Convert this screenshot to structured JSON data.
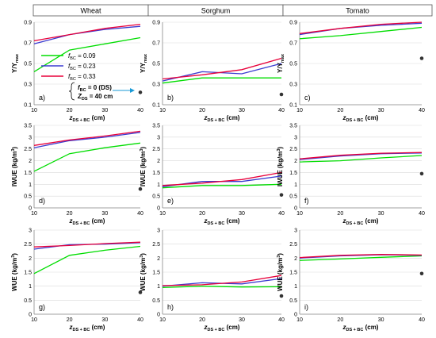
{
  "crop_titles": [
    "Wheat",
    "Sorghum",
    "Tomato"
  ],
  "legend": {
    "entries": [
      {
        "label": "f_BC = 0.09",
        "color": "#00dd00"
      },
      {
        "label": "f_BC = 0.23",
        "color": "#3a3ad0"
      },
      {
        "label": "f_BC = 0.33",
        "color": "#e8003a"
      }
    ],
    "annotation_line1": "f_BC = 0 (DS)",
    "annotation_line2": "Z_DS = 40 cm"
  },
  "x_axis_label": "z_DS + BC (cm)",
  "chart_data": [
    {
      "type": "line",
      "panel_label": "a)",
      "crop": "Wheat",
      "ylabel": "Y/Ymax",
      "x": [
        10,
        20,
        30,
        40
      ],
      "xlim": [
        10,
        40
      ],
      "xticks": [
        10,
        20,
        30,
        40
      ],
      "ylim": [
        0.1,
        0.9
      ],
      "yticks": [
        0.1,
        0.3,
        0.5,
        0.7,
        0.9
      ],
      "series": [
        {
          "color": "#00dd00",
          "values": [
            0.42,
            0.63,
            0.69,
            0.75
          ]
        },
        {
          "color": "#3a3ad0",
          "values": [
            0.69,
            0.78,
            0.83,
            0.86
          ]
        },
        {
          "color": "#e8003a",
          "values": [
            0.72,
            0.78,
            0.84,
            0.88
          ]
        }
      ],
      "ds_point": {
        "x": 40,
        "y": 0.22
      }
    },
    {
      "type": "line",
      "panel_label": "b)",
      "crop": "Sorghum",
      "ylabel": "Y/Ymax",
      "x": [
        10,
        20,
        30,
        40
      ],
      "xlim": [
        10,
        40
      ],
      "xticks": [
        10,
        20,
        30,
        40
      ],
      "ylim": [
        0.1,
        0.9
      ],
      "yticks": [
        0.1,
        0.3,
        0.5,
        0.7,
        0.9
      ],
      "series": [
        {
          "color": "#00dd00",
          "values": [
            0.31,
            0.36,
            0.36,
            0.36
          ]
        },
        {
          "color": "#3a3ad0",
          "values": [
            0.33,
            0.42,
            0.4,
            0.5
          ]
        },
        {
          "color": "#e8003a",
          "values": [
            0.35,
            0.39,
            0.44,
            0.55
          ]
        }
      ],
      "ds_point": {
        "x": 40,
        "y": 0.2
      }
    },
    {
      "type": "line",
      "panel_label": "c)",
      "crop": "Tomato",
      "ylabel": "Y/Ymax",
      "x": [
        10,
        20,
        30,
        40
      ],
      "xlim": [
        10,
        40
      ],
      "xticks": [
        10,
        20,
        30,
        40
      ],
      "ylim": [
        0.1,
        0.9
      ],
      "yticks": [
        0.1,
        0.3,
        0.5,
        0.7,
        0.9
      ],
      "series": [
        {
          "color": "#00dd00",
          "values": [
            0.74,
            0.77,
            0.81,
            0.85
          ]
        },
        {
          "color": "#3a3ad0",
          "values": [
            0.78,
            0.84,
            0.87,
            0.89
          ]
        },
        {
          "color": "#e8003a",
          "values": [
            0.79,
            0.84,
            0.88,
            0.9
          ]
        }
      ],
      "ds_point": {
        "x": 40,
        "y": 0.55
      }
    },
    {
      "type": "line",
      "panel_label": "d)",
      "crop": "Wheat",
      "ylabel": "IWUE (kg/m3)",
      "x": [
        10,
        20,
        30,
        40
      ],
      "xlim": [
        10,
        40
      ],
      "xticks": [
        10,
        20,
        30,
        40
      ],
      "ylim": [
        0,
        3.5
      ],
      "yticks": [
        0,
        0.5,
        1,
        1.5,
        2,
        2.5,
        3,
        3.5
      ],
      "series": [
        {
          "color": "#00dd00",
          "values": [
            1.55,
            2.3,
            2.55,
            2.75
          ]
        },
        {
          "color": "#3a3ad0",
          "values": [
            2.55,
            2.85,
            3.0,
            3.2
          ]
        },
        {
          "color": "#e8003a",
          "values": [
            2.65,
            2.88,
            3.05,
            3.25
          ]
        }
      ],
      "ds_point": {
        "x": 40,
        "y": 0.8
      }
    },
    {
      "type": "line",
      "panel_label": "e)",
      "crop": "Sorghum",
      "ylabel": "IWUE (kg/m3)",
      "x": [
        10,
        20,
        30,
        40
      ],
      "xlim": [
        10,
        40
      ],
      "xticks": [
        10,
        20,
        30,
        40
      ],
      "ylim": [
        0,
        3.5
      ],
      "yticks": [
        0,
        0.5,
        1,
        1.5,
        2,
        2.5,
        3,
        3.5
      ],
      "series": [
        {
          "color": "#00dd00",
          "values": [
            0.85,
            0.95,
            0.95,
            1.0
          ]
        },
        {
          "color": "#3a3ad0",
          "values": [
            0.9,
            1.12,
            1.12,
            1.35
          ]
        },
        {
          "color": "#e8003a",
          "values": [
            0.95,
            1.05,
            1.2,
            1.5
          ]
        }
      ],
      "ds_point": {
        "x": 40,
        "y": 0.55
      }
    },
    {
      "type": "line",
      "panel_label": "f)",
      "crop": "Tomato",
      "ylabel": "IWUE (kg/m3)",
      "x": [
        10,
        20,
        30,
        40
      ],
      "xlim": [
        10,
        40
      ],
      "xticks": [
        10,
        20,
        30,
        40
      ],
      "ylim": [
        0,
        3.5
      ],
      "yticks": [
        0,
        0.5,
        1,
        1.5,
        2,
        2.5,
        3,
        3.5
      ],
      "series": [
        {
          "color": "#00dd00",
          "values": [
            1.95,
            2.0,
            2.12,
            2.22
          ]
        },
        {
          "color": "#3a3ad0",
          "values": [
            2.05,
            2.2,
            2.3,
            2.33
          ]
        },
        {
          "color": "#e8003a",
          "values": [
            2.08,
            2.23,
            2.32,
            2.35
          ]
        }
      ],
      "ds_point": {
        "x": 40,
        "y": 1.45
      }
    },
    {
      "type": "line",
      "panel_label": "g)",
      "crop": "Wheat",
      "ylabel": "WUE (kg/m3)",
      "x": [
        10,
        20,
        30,
        40
      ],
      "xlim": [
        10,
        40
      ],
      "xticks": [
        10,
        20,
        30,
        40
      ],
      "ylim": [
        0,
        3
      ],
      "yticks": [
        0,
        0.5,
        1,
        1.5,
        2,
        2.5,
        3
      ],
      "series": [
        {
          "color": "#00dd00",
          "values": [
            1.45,
            2.1,
            2.28,
            2.42
          ]
        },
        {
          "color": "#3a3ad0",
          "values": [
            2.32,
            2.48,
            2.5,
            2.55
          ]
        },
        {
          "color": "#e8003a",
          "values": [
            2.4,
            2.45,
            2.52,
            2.57
          ]
        }
      ],
      "ds_point": {
        "x": 40,
        "y": 0.78
      }
    },
    {
      "type": "line",
      "panel_label": "h)",
      "crop": "Sorghum",
      "ylabel": "WUE (kg/m3)",
      "x": [
        10,
        20,
        30,
        40
      ],
      "xlim": [
        10,
        40
      ],
      "xticks": [
        10,
        20,
        30,
        40
      ],
      "ylim": [
        0,
        3
      ],
      "yticks": [
        0,
        0.5,
        1,
        1.5,
        2,
        2.5,
        3
      ],
      "series": [
        {
          "color": "#00dd00",
          "values": [
            0.95,
            1.0,
            0.97,
            0.98
          ]
        },
        {
          "color": "#3a3ad0",
          "values": [
            1.0,
            1.12,
            1.08,
            1.27
          ]
        },
        {
          "color": "#e8003a",
          "values": [
            1.02,
            1.05,
            1.15,
            1.38
          ]
        }
      ],
      "ds_point": {
        "x": 40,
        "y": 0.65
      }
    },
    {
      "type": "line",
      "panel_label": "i)",
      "crop": "Tomato",
      "ylabel": "WUE (kg/m3)",
      "x": [
        10,
        20,
        30,
        40
      ],
      "xlim": [
        10,
        40
      ],
      "xticks": [
        10,
        20,
        30,
        40
      ],
      "ylim": [
        0,
        3
      ],
      "yticks": [
        0,
        0.5,
        1,
        1.5,
        2,
        2.5,
        3
      ],
      "series": [
        {
          "color": "#00dd00",
          "values": [
            1.92,
            1.97,
            2.03,
            2.08
          ]
        },
        {
          "color": "#3a3ad0",
          "values": [
            2.0,
            2.08,
            2.12,
            2.1
          ]
        },
        {
          "color": "#e8003a",
          "values": [
            2.02,
            2.1,
            2.13,
            2.11
          ]
        }
      ],
      "ds_point": {
        "x": 40,
        "y": 1.45
      }
    }
  ]
}
